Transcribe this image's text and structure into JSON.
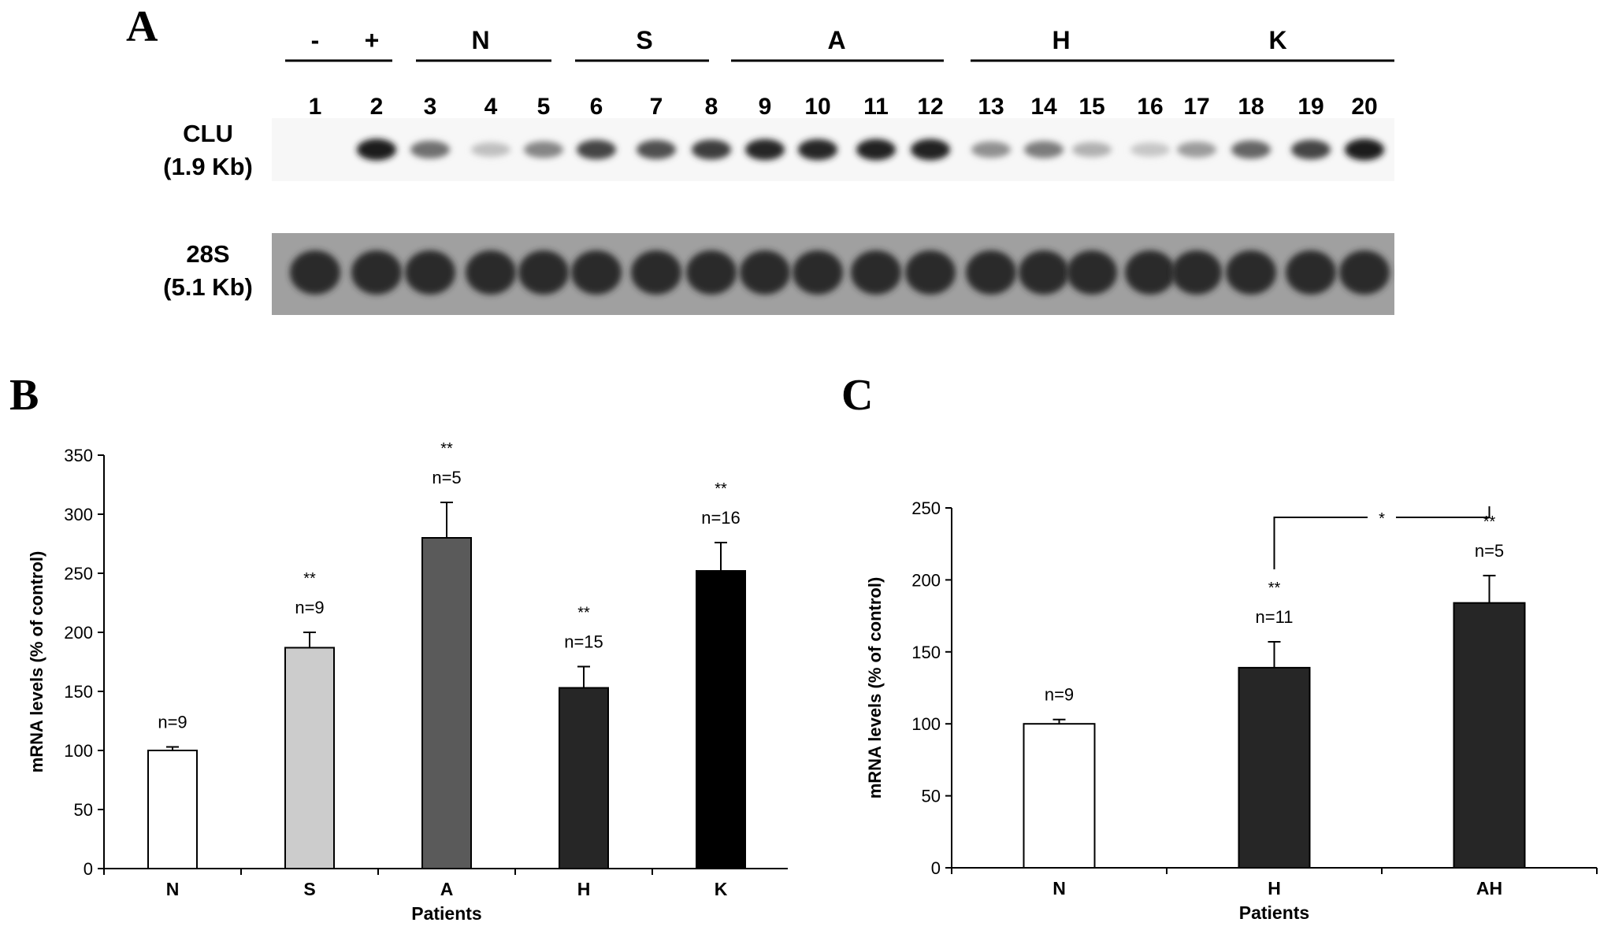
{
  "panels": {
    "a": "A",
    "b": "B",
    "c": "C"
  },
  "blot": {
    "group_labels": [
      "-",
      "+",
      "N",
      "S",
      "A",
      "H",
      "K"
    ],
    "lane_numbers": [
      "1",
      "2",
      "3",
      "4",
      "5",
      "6",
      "7",
      "8",
      "9",
      "10",
      "11",
      "12",
      "13",
      "14",
      "15",
      "16",
      "17",
      "18",
      "19",
      "20"
    ],
    "clu_label": "CLU",
    "clu_size": "(1.9 Kb)",
    "rrna_label": "28S",
    "rrna_size": "(5.1 Kb)",
    "clu_band_intensity": [
      0,
      0.95,
      0.55,
      0.18,
      0.45,
      0.75,
      0.7,
      0.78,
      0.9,
      0.9,
      0.92,
      0.92,
      0.4,
      0.5,
      0.25,
      0.15,
      0.35,
      0.6,
      0.75,
      0.95
    ]
  },
  "chart_data": [
    {
      "type": "bar",
      "title": "",
      "xlabel": "Patients",
      "ylabel": "mRNA levels (% of control)",
      "ylim": [
        0,
        350
      ],
      "yticks": [
        0,
        50,
        100,
        150,
        200,
        250,
        300,
        350
      ],
      "categories": [
        "N",
        "S",
        "A",
        "H",
        "K"
      ],
      "values": [
        100,
        187,
        280,
        153,
        252
      ],
      "errors": [
        3,
        13,
        30,
        18,
        24
      ],
      "n_labels": [
        "n=9",
        "n=9",
        "n=5",
        "n=15",
        "n=16"
      ],
      "significance": [
        "",
        "**",
        "**",
        "**",
        "**"
      ],
      "colors": [
        "#ffffff",
        "#cccccc",
        "#5a5a5a",
        "#262626",
        "#000000"
      ]
    },
    {
      "type": "bar",
      "title": "",
      "xlabel": "Patients",
      "ylabel": "mRNA levels (% of control)",
      "ylim": [
        0,
        250
      ],
      "yticks": [
        0,
        50,
        100,
        150,
        200,
        250
      ],
      "categories": [
        "N",
        "H",
        "AH"
      ],
      "values": [
        100,
        139,
        184
      ],
      "errors": [
        3,
        18,
        19
      ],
      "n_labels": [
        "n=9",
        "n=11",
        "n=5"
      ],
      "significance": [
        "",
        "**",
        "**"
      ],
      "bracket_label": "*",
      "colors": [
        "#ffffff",
        "#262626",
        "#262626"
      ]
    }
  ]
}
